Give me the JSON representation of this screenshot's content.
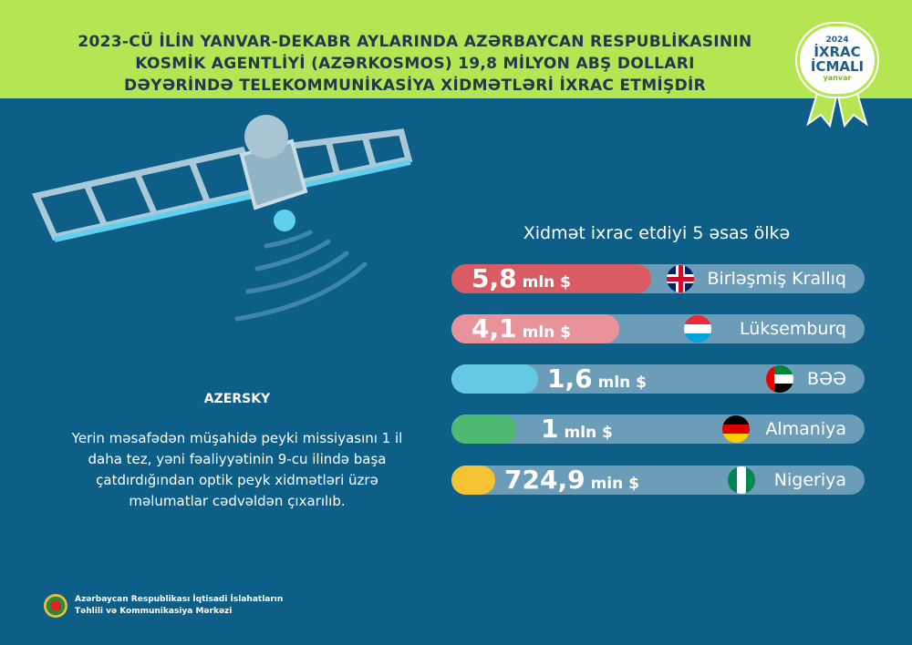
{
  "header": {
    "title_lines": [
      "2023-CÜ İLİN YANVAR-DEKABR AYLARINDA AZƏRBAYCAN RESPUBLİKASININ",
      "KOSMİK AGENTLİYİ (AZƏRKOSMOS) 19,8 MİLYON ABŞ DOLLARI",
      "DƏYƏRİNDƏ TELEKOMMUNİKASİYA XİDMƏTLƏRİ İXRAC ETMİŞDİR"
    ]
  },
  "badge": {
    "year": "2024",
    "line1": "İXRAC",
    "line2": "İCMALI",
    "month": "yanvar"
  },
  "satellite": {
    "name": "AZERSKY",
    "description": "Yerin məsafədən müşahidə peyki missiyasını 1 il daha tez, yəni fəaliyyətinin 9-cu ilində başa çatdırdığından optik peyk xidmətləri üzrə məlumatlar cədvəldən çıxarılıb."
  },
  "chart_data": {
    "type": "bar",
    "title": "Xidmət ixrac etdiyi 5 əsas ölkə",
    "categories": [
      "Birləşmiş Krallıq",
      "Lüksemburq",
      "BƏƏ",
      "Almaniya",
      "Nigeriya"
    ],
    "values": [
      5.8,
      4.1,
      1.6,
      1,
      0.7249
    ],
    "labels": [
      {
        "num": "5,8",
        "unit": "mln $"
      },
      {
        "num": "4,1",
        "unit": "mln $"
      },
      {
        "num": "1,6",
        "unit": "mln $"
      },
      {
        "num": "1",
        "unit": "mln $"
      },
      {
        "num": "724,9",
        "unit": "min $"
      }
    ],
    "colors": [
      "#d95b63",
      "#e8939a",
      "#65c9e3",
      "#4fba72",
      "#f4c233"
    ],
    "flags": [
      "uk-flag",
      "luxembourg-flag",
      "uae-flag",
      "germany-flag",
      "nigeria-flag"
    ]
  },
  "footer": {
    "line1": "Azərbaycan Respublikası İqtisadi İslahatların",
    "line2": "Təhlili və Kommunikasiya Mərkəzi"
  }
}
